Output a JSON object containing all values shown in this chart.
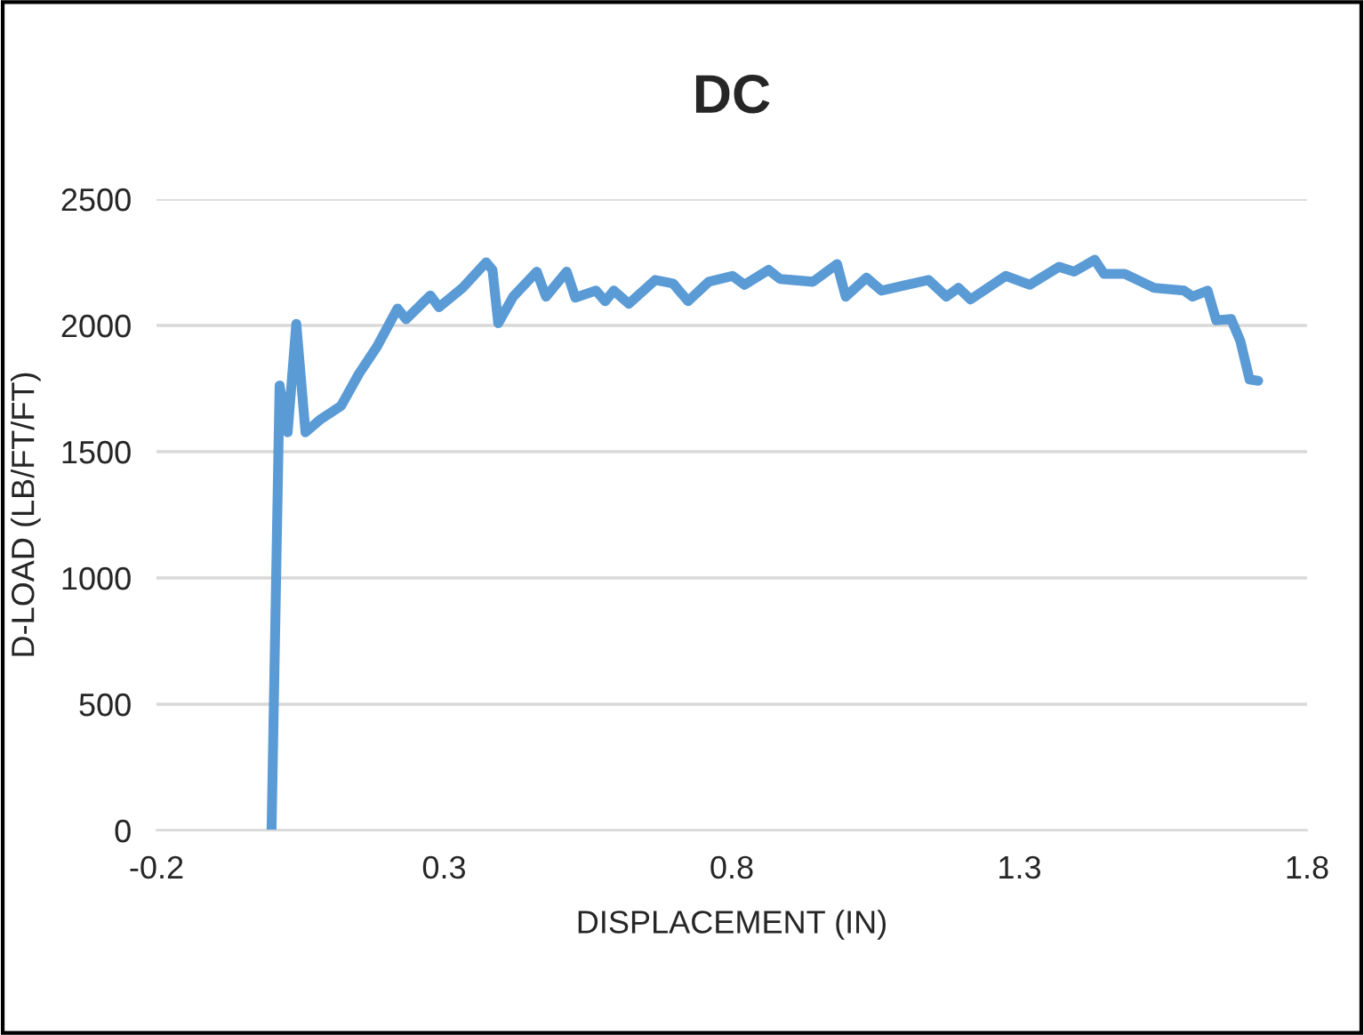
{
  "chart_data": {
    "type": "line",
    "title": "DC",
    "xlabel": "DISPLACEMENT (IN)",
    "ylabel": "D-LOAD (LB/FT/FT)",
    "xlim": [
      -0.2,
      1.8
    ],
    "xticks": [
      -0.2,
      0.3,
      0.8,
      1.3,
      1.8
    ],
    "ylim": [
      0,
      2500
    ],
    "yticks": [
      0,
      500,
      1000,
      1500,
      2000,
      2500
    ],
    "grid": "y",
    "legend": false,
    "marker": "none",
    "line_style": "solid",
    "series": [
      {
        "color": "#5b9bd5",
        "x": [
          0,
          0.014,
          0.028,
          0.043,
          0.059,
          0.084,
          0.121,
          0.152,
          0.183,
          0.219,
          0.234,
          0.276,
          0.291,
          0.332,
          0.373,
          0.384,
          0.394,
          0.42,
          0.461,
          0.477,
          0.513,
          0.528,
          0.564,
          0.58,
          0.595,
          0.621,
          0.667,
          0.698,
          0.724,
          0.76,
          0.801,
          0.822,
          0.864,
          0.884,
          0.905,
          0.941,
          0.983,
          0.998,
          1.034,
          1.06,
          1.142,
          1.173,
          1.194,
          1.215,
          1.276,
          1.318,
          1.369,
          1.395,
          1.431,
          1.447,
          1.483,
          1.534,
          1.586,
          1.601,
          1.627,
          1.642,
          1.668,
          1.684,
          1.7,
          1.715
        ],
        "values": [
          0,
          1762,
          1577,
          2006,
          1577,
          1626,
          1682,
          1809,
          1915,
          2067,
          2025,
          2119,
          2072,
          2149,
          2250,
          2220,
          2009,
          2114,
          2213,
          2114,
          2213,
          2110,
          2138,
          2096,
          2138,
          2086,
          2180,
          2166,
          2096,
          2173,
          2196,
          2161,
          2220,
          2184,
          2180,
          2173,
          2243,
          2114,
          2189,
          2138,
          2180,
          2114,
          2149,
          2103,
          2196,
          2161,
          2232,
          2213,
          2260,
          2204,
          2204,
          2149,
          2138,
          2114,
          2138,
          2020,
          2025,
          1938,
          1786,
          1781
        ]
      }
    ]
  }
}
